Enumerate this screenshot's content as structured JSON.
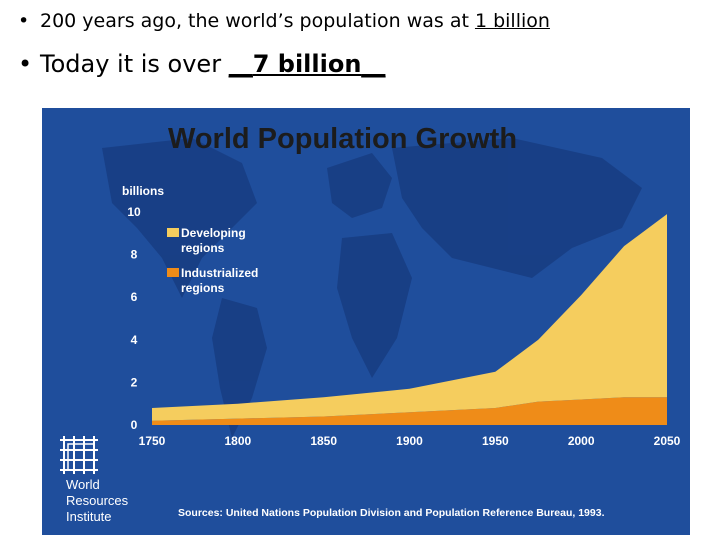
{
  "slide": {
    "bullet1": {
      "text": "200 years ago, the world’s population was at ",
      "answer": "1 billion"
    },
    "bullet2": {
      "text": "Today it is over ",
      "blank_before": "__",
      "answer": "7 billion",
      "blank_after": "__"
    }
  },
  "colors": {
    "background_blue": "#1f4e9c",
    "developing": "#f5cd5e",
    "industrialized": "#ef8c18",
    "chart_text": "#ffffff",
    "title_text": "#1c1c1c"
  },
  "chart_data": {
    "type": "area",
    "stacked": true,
    "title": "World Population Growth",
    "ylabel": "billions",
    "xlabel": "",
    "x": [
      1750,
      1800,
      1850,
      1900,
      1950,
      1975,
      2000,
      2025,
      2050
    ],
    "ylim": [
      0,
      10
    ],
    "xlim": [
      1750,
      2050
    ],
    "yticks": [
      0,
      2,
      4,
      6,
      8,
      10
    ],
    "xticks": [
      1750,
      1800,
      1850,
      1900,
      1950,
      2000,
      2050
    ],
    "series": [
      {
        "name": "Industrialized regions",
        "color": "#ef8c18",
        "values": [
          0.2,
          0.3,
          0.4,
          0.6,
          0.8,
          1.1,
          1.2,
          1.3,
          1.3
        ]
      },
      {
        "name": "Developing regions",
        "color": "#f5cd5e",
        "values": [
          0.6,
          0.7,
          0.9,
          1.1,
          1.7,
          2.9,
          4.9,
          7.1,
          8.6
        ]
      }
    ],
    "legend_position": "top-left",
    "source": "Sources: United Nations Population Division and Population Reference Bureau, 1993.",
    "logo_text": [
      "World",
      "Resources",
      "Institute"
    ]
  }
}
